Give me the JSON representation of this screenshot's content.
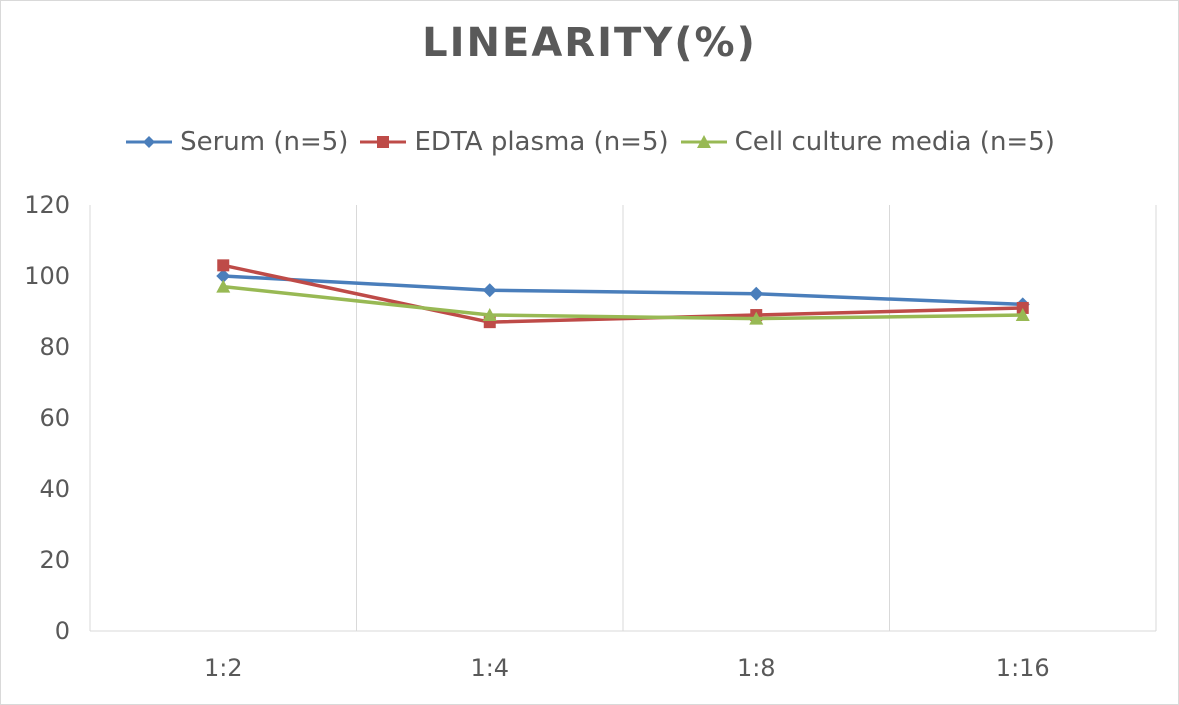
{
  "chart_data": {
    "type": "line",
    "title": "LINEARITY(%)",
    "categories": [
      "1:2",
      "1:4",
      "1:8",
      "1:16"
    ],
    "series": [
      {
        "name": "Serum (n=5)",
        "values": [
          100,
          96,
          95,
          92
        ],
        "color": "#4a7ebb",
        "marker": "diamond"
      },
      {
        "name": "EDTA plasma (n=5)",
        "values": [
          103,
          87,
          89,
          91
        ],
        "color": "#be4b48",
        "marker": "square"
      },
      {
        "name": "Cell culture media (n=5)",
        "values": [
          97,
          89,
          88,
          89
        ],
        "color": "#98b954",
        "marker": "triangle"
      }
    ],
    "ylim": [
      0,
      120
    ],
    "yticks": [
      "0",
      "20",
      "40",
      "60",
      "80",
      "100",
      "120"
    ],
    "grid": "vertical",
    "legend_position": "top"
  }
}
